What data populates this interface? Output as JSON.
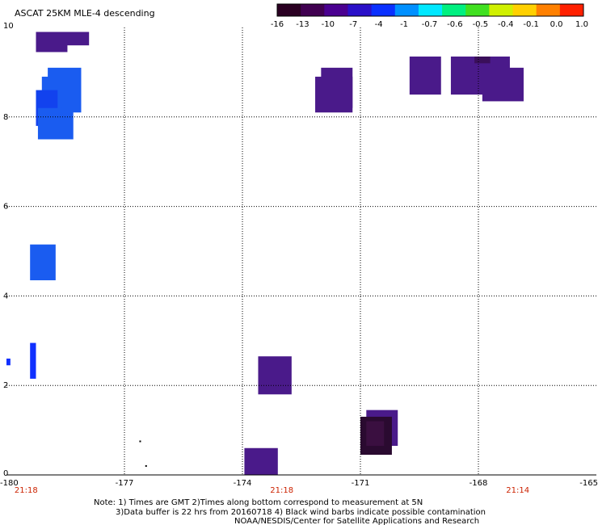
{
  "title": "ASCAT 25KM MLE-4 descending",
  "notes": [
    "Note: 1) Times are GMT 2)Times along bottom correspond to measurement at 5N",
    "3)Data buffer is 22 hrs from 20160718 4) Black wind barbs indicate possible contamination",
    "NOAA/NESDIS/Center for Satellite Applications and Research"
  ],
  "colorbar": {
    "labels": [
      "-16",
      "-13",
      "-10",
      "-7",
      "-4",
      "-1",
      "-0.7",
      "-0.6",
      "-0.5",
      "-0.4",
      "-0.1",
      "0.0",
      "1.0"
    ],
    "colors": [
      "#2a0022",
      "#400050",
      "#4a0090",
      "#2a10c8",
      "#0a30ff",
      "#0090ff",
      "#00e8ff",
      "#00f080",
      "#40e020",
      "#d0f000",
      "#ffd000",
      "#ff8000",
      "#ff2000"
    ]
  },
  "chart_data": {
    "type": "heatmap",
    "xlim": [
      -180,
      -165
    ],
    "ylim": [
      0,
      10
    ],
    "x_ticks": [
      -180,
      -177,
      -174,
      -171,
      -168,
      -165
    ],
    "x_tick_labels": [
      "-180",
      "-177",
      "-174",
      "-171",
      "-168",
      "-165"
    ],
    "y_ticks": [
      0,
      2,
      4,
      6,
      8,
      10
    ],
    "y_tick_labels": [
      "0",
      "2",
      "4",
      "6",
      "8",
      "10"
    ],
    "grid": true,
    "time_labels": [
      {
        "x": -179.5,
        "label": "21:18"
      },
      {
        "x": -173.0,
        "label": "21:18"
      },
      {
        "x": -167.0,
        "label": "21:14"
      }
    ],
    "cells": [
      {
        "x0": -179.25,
        "x1": -177.9,
        "y0": 9.6,
        "y1": 9.9,
        "color": "#4a1a8a"
      },
      {
        "x0": -179.25,
        "x1": -178.45,
        "y0": 9.45,
        "y1": 9.7,
        "color": "#4a1a8a"
      },
      {
        "x0": -178.95,
        "x1": -178.1,
        "y0": 8.1,
        "y1": 9.1,
        "color": "#1a5cf0"
      },
      {
        "x0": -179.1,
        "x1": -178.6,
        "y0": 8.0,
        "y1": 8.9,
        "color": "#1a5cf0"
      },
      {
        "x0": -179.25,
        "x1": -178.7,
        "y0": 7.8,
        "y1": 8.6,
        "color": "#1242ee"
      },
      {
        "x0": -179.2,
        "x1": -178.3,
        "y0": 7.5,
        "y1": 8.2,
        "color": "#1a5cf0"
      },
      {
        "x0": -179.4,
        "x1": -178.75,
        "y0": 4.35,
        "y1": 5.15,
        "color": "#1a5cf0"
      },
      {
        "x0": -179.4,
        "x1": -179.25,
        "y0": 2.15,
        "y1": 2.95,
        "color": "#1030ff"
      },
      {
        "x0": -180.0,
        "x1": -179.9,
        "y0": 2.45,
        "y1": 2.6,
        "color": "#1030ff"
      },
      {
        "x0": -172.0,
        "x1": -171.2,
        "y0": 8.2,
        "y1": 9.1,
        "color": "#4a1a8a"
      },
      {
        "x0": -172.15,
        "x1": -171.2,
        "y0": 8.1,
        "y1": 8.9,
        "color": "#4a1a8a"
      },
      {
        "x0": -169.75,
        "x1": -168.95,
        "y0": 8.5,
        "y1": 9.35,
        "color": "#4a1a8a"
      },
      {
        "x0": -168.7,
        "x1": -167.2,
        "y0": 8.5,
        "y1": 9.35,
        "color": "#4a1a8a"
      },
      {
        "x0": -168.1,
        "x1": -167.7,
        "y0": 9.2,
        "y1": 9.35,
        "color": "#3a0f5a"
      },
      {
        "x0": -167.9,
        "x1": -166.85,
        "y0": 8.35,
        "y1": 9.1,
        "color": "#4a1a8a"
      },
      {
        "x0": -173.6,
        "x1": -172.75,
        "y0": 1.8,
        "y1": 2.65,
        "color": "#4a1a8a"
      },
      {
        "x0": -173.95,
        "x1": -173.1,
        "y0": -0.05,
        "y1": 0.6,
        "color": "#4a1a8a"
      },
      {
        "x0": -170.85,
        "x1": -170.05,
        "y0": 0.65,
        "y1": 1.45,
        "color": "#4a1a8a"
      },
      {
        "x0": -171.0,
        "x1": -170.2,
        "y0": 0.45,
        "y1": 1.3,
        "color": "#2a0a30"
      },
      {
        "x0": -170.85,
        "x1": -170.4,
        "y0": 0.65,
        "y1": 1.2,
        "color": "#3a0f40"
      }
    ],
    "points": [
      {
        "x": -176.6,
        "y": 0.75
      },
      {
        "x": -176.45,
        "y": 0.2
      }
    ]
  }
}
